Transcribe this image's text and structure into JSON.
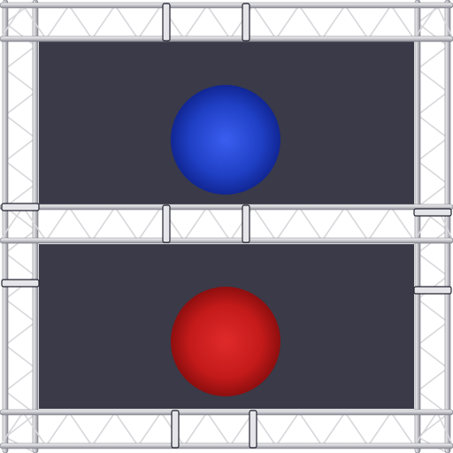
{
  "scene": {
    "background_color": "#ffffff",
    "panel_color": "#3a3a48",
    "truss_color": "#d8d8dc",
    "truss_shadow": "#7c7c86",
    "truss_highlight": "#ffffff"
  },
  "balls": [
    {
      "name": "blue-ball",
      "color": "#1f3fc4",
      "highlight": "#3a5ef0",
      "shade": "#0d1f86"
    },
    {
      "name": "red-ball",
      "color": "#c41a1a",
      "highlight": "#e02a2a",
      "shade": "#7e0b0b"
    }
  ]
}
